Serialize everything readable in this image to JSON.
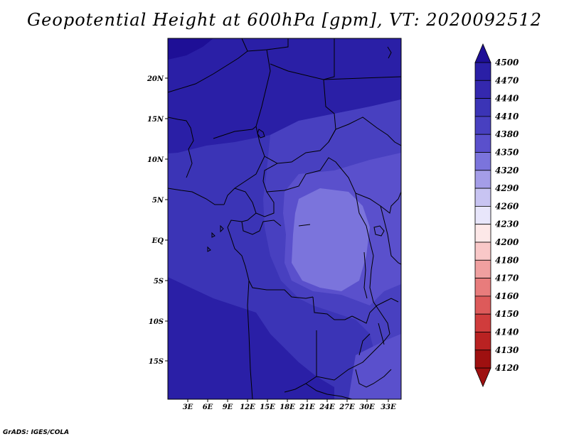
{
  "title": "Geopotential Height at 600hPa [gpm], VT: 2020092512",
  "credit": "GrADS: IGES/COLA",
  "map": {
    "lat_labels": [
      "20N",
      "15N",
      "10N",
      "5N",
      "EQ",
      "5S",
      "10S",
      "15S"
    ],
    "lon_labels": [
      "3E",
      "6E",
      "9E",
      "12E",
      "15E",
      "18E",
      "21E",
      "24E",
      "27E",
      "30E",
      "33E"
    ]
  },
  "colorbar": {
    "levels": [
      "4500",
      "4470",
      "4440",
      "4410",
      "4380",
      "4350",
      "4320",
      "4290",
      "4260",
      "4230",
      "4200",
      "4180",
      "4170",
      "4160",
      "4150",
      "4140",
      "4130",
      "4120"
    ],
    "colors": [
      "#1e0f96",
      "#2a1fa6",
      "#3428ae",
      "#3b34b6",
      "#4840c0",
      "#5a50cc",
      "#7b74dc",
      "#a49de8",
      "#c8c4f2",
      "#e8e6fb",
      "#fde8e8",
      "#f9c8c8",
      "#f0a0a0",
      "#e87c7c",
      "#dd5a5a",
      "#d03c3c",
      "#b92222",
      "#9e1010"
    ]
  },
  "fields": {
    "background": "#3b34b6",
    "deep": "#2a1fa6",
    "darkest": "#1e0f96",
    "mid": "#4840c0",
    "light": "#5a50cc",
    "lightest": "#7b74dc"
  }
}
